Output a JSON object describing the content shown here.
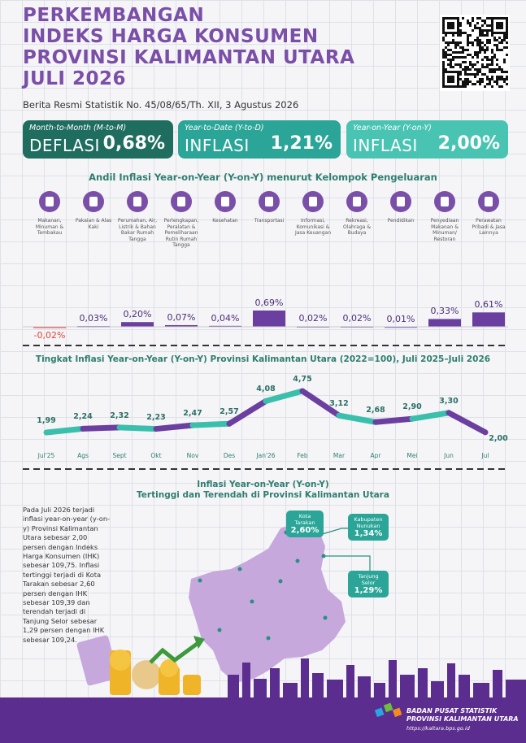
{
  "header": {
    "title_lines": [
      "PERKEMBANGAN",
      "INDEKS HARGA KONSUMEN",
      "PROVINSI KALIMANTAN UTARA",
      "JULI 2026"
    ],
    "subtitle": "Berita Resmi Statistik No. 45/08/65/Th. XII, 3 Agustus 2026"
  },
  "indicators": [
    {
      "period": "Month-to-Month (M-to-M)",
      "status": "DEFLASI",
      "value": "0,68%",
      "color": "#1f6d5f"
    },
    {
      "period": "Year-to-Date (Y-to-D)",
      "status": "INFLASI",
      "value": "1,21%",
      "color": "#2aa597"
    },
    {
      "period": "Year-on-Year (Y-on-Y)",
      "status": "INFLASI",
      "value": "2,00%",
      "color": "#49c4b3"
    }
  ],
  "chart_data": [
    {
      "type": "bar",
      "title": "Andil Inflasi Year-on-Year (Y-on-Y) menurut Kelompok Pengeluaran",
      "categories": [
        "Makanan, Minuman & Tembakau",
        "Pakaian & Alas Kaki",
        "Perumahan, Air, Listrik & Bahan Bakar Rumah Tangga",
        "Perlengkapan, Peralatan & Pemeliharaan Rutin Rumah Tangga",
        "Kesehatan",
        "Transportasi",
        "Informasi, Komunikasi & Jasa Keuangan",
        "Rekreasi, Olahraga & Budaya",
        "Pendidikan",
        "Penyediaan Makanan & Minuman/ Restoran",
        "Perawatan Pribadi & Jasa Lainnya"
      ],
      "values": [
        -0.02,
        0.03,
        0.2,
        0.07,
        0.04,
        0.69,
        0.02,
        0.02,
        0.01,
        0.33,
        0.61
      ],
      "value_labels": [
        "-0,02%",
        "0,03%",
        "0,20%",
        "0,07%",
        "0,04%",
        "0,69%",
        "0,02%",
        "0,02%",
        "0,01%",
        "0,33%",
        "0,61%"
      ],
      "color": "#6b3fa0",
      "negative_color": "#e0443a"
    },
    {
      "type": "line",
      "title": "Tingkat Inflasi Year-on-Year (Y-on-Y) Provinsi Kalimantan Utara (2022=100), Juli 2025–Juli 2026",
      "categories": [
        "Jul'25",
        "Ags",
        "Sept",
        "Okt",
        "Nov",
        "Des",
        "Jan'26",
        "Feb",
        "Mar",
        "Apr",
        "Mei",
        "Jun",
        "Jul"
      ],
      "values": [
        1.99,
        2.24,
        2.32,
        2.23,
        2.47,
        2.57,
        4.08,
        4.75,
        3.12,
        2.68,
        2.9,
        3.3,
        2.0
      ],
      "value_labels": [
        "1,99",
        "2,24",
        "2,32",
        "2,23",
        "2,47",
        "2,57",
        "4,08",
        "4,75",
        "3,12",
        "2,68",
        "2,90",
        "3,30",
        "2,00"
      ],
      "colors": [
        "#3bbfad",
        "#6b3fa0"
      ]
    }
  ],
  "map": {
    "title_lines": [
      "Inflasi Year-on-Year (Y-on-Y)",
      "Tertinggi dan Terendah di Provinsi Kalimantan Utara"
    ],
    "callouts": [
      {
        "name": "Kota Tarakan",
        "value": "2,60%"
      },
      {
        "name": "Kabupaten Nunukan",
        "value": "1,34%"
      },
      {
        "name": "Tanjung Selor",
        "value": "1,29%"
      }
    ],
    "paragraph": "Pada Juli 2026 terjadi inflasi year-on-year (y-on-y) Provinsi Kalimantan Utara sebesar 2,00 persen dengan Indeks Harga Konsumen (IHK) sebesar 109,75. Inflasi tertinggi terjadi di Kota Tarakan sebesar 2,60 persen dengan IHK sebesar 109,39 dan terendah terjadi di Tanjung Selor sebesar 1,29 persen dengan IHK sebesar 109,24."
  },
  "footer": {
    "agency": "BADAN PUSAT STATISTIK",
    "region": "PROVINSI KALIMANTAN UTARA",
    "url": "https://kaltara.bps.go.id"
  }
}
